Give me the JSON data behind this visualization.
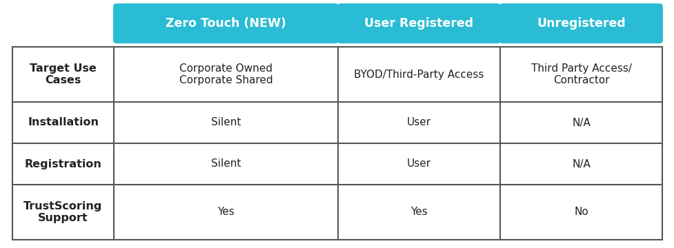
{
  "header_labels": [
    "Zero Touch (NEW)",
    "User Registered",
    "Unregistered"
  ],
  "header_bg_color": "#29BCD4",
  "header_text_color": "#FFFFFF",
  "row_labels": [
    "Target Use\nCases",
    "Installation",
    "Registration",
    "TrustScoring\nSupport"
  ],
  "cell_data": [
    [
      "Corporate Owned\nCorporate Shared",
      "BYOD/Third-Party Access",
      "Third Party Access/\nContractor"
    ],
    [
      "Silent",
      "User",
      "N/A"
    ],
    [
      "Silent",
      "User",
      "N/A"
    ],
    [
      "Yes",
      "Yes",
      "No"
    ]
  ],
  "table_border_color": "#555555",
  "cell_text_color": "#222222",
  "bg_color": "#FFFFFF",
  "figure_width": 9.77,
  "figure_height": 3.6,
  "header_font_size": 12.5,
  "row_label_font_size": 11.5,
  "cell_font_size": 11
}
